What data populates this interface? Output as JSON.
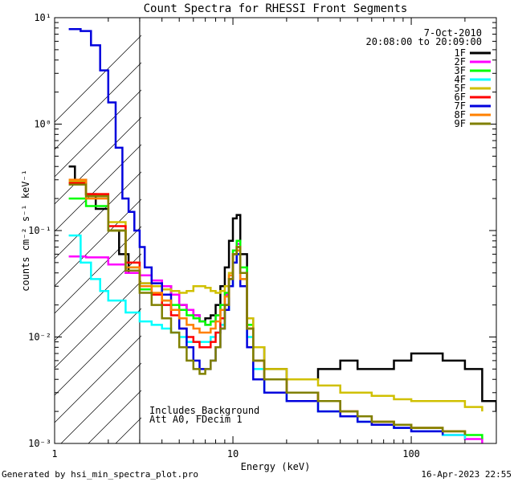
{
  "chart_data": {
    "type": "line",
    "title": "Count Spectra for RHESSI Front Segments",
    "xlabel": "Energy (keV)",
    "ylabel": "counts cm⁻² s⁻¹ keV⁻¹",
    "xscale": "log",
    "yscale": "log",
    "xlim": [
      1,
      300
    ],
    "ylim": [
      0.001,
      10
    ],
    "x_ticks": [
      1,
      10,
      100
    ],
    "x_tick_labels": [
      "1",
      "10",
      "100"
    ],
    "y_ticks": [
      0.001,
      0.01,
      0.1,
      1,
      10
    ],
    "y_tick_labels": [
      "10⁻³",
      "10⁻²",
      "10⁻¹",
      "10⁰",
      "10¹"
    ],
    "date": "7-Oct-2010",
    "time_range": "20:08:00 to 20:09:00",
    "annotations": [
      "Includes_Background",
      "Att A0, FDecim 1"
    ],
    "excluded_region_keV": [
      1,
      3
    ],
    "series": [
      {
        "name": "1F",
        "color": "#000000",
        "x": [
          1.2,
          1.3,
          1.5,
          1.7,
          2.0,
          2.3,
          2.6,
          3.0,
          3.5,
          4.0,
          4.5,
          5.0,
          5.5,
          6.0,
          6.5,
          7.0,
          7.5,
          8.0,
          8.5,
          9.0,
          9.5,
          10.0,
          10.5,
          11.0,
          12.0,
          13.0,
          15.0,
          20.0,
          30.0,
          40.0,
          50.0,
          60.0,
          80.0,
          100.0,
          120.0,
          150.0,
          200.0,
          250.0,
          300.0
        ],
        "y": [
          0.4,
          0.3,
          0.22,
          0.16,
          0.1,
          0.06,
          0.04,
          0.032,
          0.03,
          0.03,
          0.025,
          0.02,
          0.018,
          0.016,
          0.014,
          0.015,
          0.016,
          0.02,
          0.03,
          0.045,
          0.08,
          0.13,
          0.14,
          0.06,
          0.015,
          0.008,
          0.005,
          0.004,
          0.005,
          0.006,
          0.005,
          0.005,
          0.006,
          0.007,
          0.007,
          0.006,
          0.005,
          0.0025,
          0.002
        ]
      },
      {
        "name": "2F",
        "color": "#ff00ff",
        "x": [
          1.2,
          1.5,
          2.0,
          2.5,
          3.0,
          3.5,
          4.0,
          4.5,
          5.0,
          5.5,
          6.0,
          6.5,
          7.0,
          7.5,
          8.0,
          8.5,
          9.0,
          9.5,
          10.0,
          10.5,
          11.0,
          12.0,
          13.0,
          15.0,
          20.0,
          30.0,
          40.0,
          50.0,
          60.0,
          80.0,
          100.0,
          150.0,
          200.0,
          250.0
        ],
        "y": [
          0.057,
          0.056,
          0.048,
          0.04,
          0.038,
          0.034,
          0.03,
          0.025,
          0.02,
          0.018,
          0.016,
          0.014,
          0.013,
          0.014,
          0.016,
          0.02,
          0.025,
          0.035,
          0.06,
          0.075,
          0.04,
          0.012,
          0.006,
          0.004,
          0.003,
          0.0025,
          0.002,
          0.0018,
          0.0015,
          0.0014,
          0.0013,
          0.0012,
          0.0011,
          0.001
        ]
      },
      {
        "name": "3F",
        "color": "#00ff00",
        "x": [
          1.2,
          1.5,
          2.0,
          2.5,
          3.0,
          3.5,
          4.0,
          4.5,
          5.0,
          5.5,
          6.0,
          6.5,
          7.0,
          7.5,
          8.0,
          8.5,
          9.0,
          9.5,
          10.0,
          10.5,
          11.0,
          12.0,
          13.0,
          15.0,
          20.0,
          30.0,
          40.0,
          50.0,
          60.0,
          80.0,
          100.0,
          150.0,
          200.0,
          250.0
        ],
        "y": [
          0.2,
          0.17,
          0.1,
          0.045,
          0.028,
          0.025,
          0.022,
          0.02,
          0.018,
          0.016,
          0.015,
          0.014,
          0.013,
          0.014,
          0.016,
          0.02,
          0.026,
          0.04,
          0.065,
          0.08,
          0.045,
          0.013,
          0.006,
          0.004,
          0.003,
          0.0025,
          0.002,
          0.0018,
          0.0016,
          0.0015,
          0.0014,
          0.0013,
          0.0012,
          0.0011
        ]
      },
      {
        "name": "4F",
        "color": "#00ffff",
        "x": [
          1.2,
          1.4,
          1.6,
          1.8,
          2.0,
          2.5,
          3.0,
          3.5,
          4.0,
          4.5,
          5.0,
          5.5,
          6.0,
          6.5,
          7.0,
          7.5,
          8.0,
          8.5,
          9.0,
          9.5,
          10.0,
          10.5,
          11.0,
          12.0,
          13.0,
          15.0,
          20.0,
          30.0,
          40.0,
          50.0,
          60.0,
          80.0,
          100.0,
          150.0,
          200.0
        ],
        "y": [
          0.09,
          0.05,
          0.035,
          0.027,
          0.022,
          0.017,
          0.014,
          0.013,
          0.012,
          0.011,
          0.01,
          0.009,
          0.009,
          0.009,
          0.009,
          0.01,
          0.011,
          0.013,
          0.018,
          0.03,
          0.05,
          0.06,
          0.035,
          0.01,
          0.005,
          0.003,
          0.0025,
          0.002,
          0.0018,
          0.0016,
          0.0015,
          0.0014,
          0.0013,
          0.0012,
          0.0011
        ]
      },
      {
        "name": "5F",
        "color": "#d0c000",
        "x": [
          1.2,
          1.5,
          2.0,
          2.5,
          3.0,
          3.5,
          4.0,
          4.5,
          5.0,
          5.5,
          6.0,
          6.5,
          7.0,
          7.5,
          8.0,
          8.5,
          9.0,
          9.5,
          10.0,
          10.5,
          11.0,
          12.0,
          13.0,
          15.0,
          20.0,
          30.0,
          40.0,
          50.0,
          60.0,
          80.0,
          100.0,
          150.0,
          200.0,
          250.0
        ],
        "y": [
          0.29,
          0.22,
          0.12,
          0.05,
          0.032,
          0.03,
          0.028,
          0.027,
          0.026,
          0.027,
          0.03,
          0.03,
          0.029,
          0.027,
          0.026,
          0.027,
          0.03,
          0.04,
          0.06,
          0.07,
          0.04,
          0.015,
          0.008,
          0.005,
          0.004,
          0.0035,
          0.003,
          0.003,
          0.0028,
          0.0026,
          0.0025,
          0.0025,
          0.0022,
          0.002
        ]
      },
      {
        "name": "6F",
        "color": "#ff0000",
        "x": [
          1.2,
          1.5,
          2.0,
          2.5,
          3.0,
          3.5,
          4.0,
          4.5,
          5.0,
          5.5,
          6.0,
          6.5,
          7.0,
          7.5,
          8.0,
          8.5,
          9.0,
          9.5,
          10.0,
          10.5,
          11.0,
          12.0,
          13.0,
          15.0,
          20.0,
          30.0,
          40.0,
          50.0,
          60.0,
          80.0,
          100.0,
          150.0,
          200.0
        ],
        "y": [
          0.28,
          0.22,
          0.11,
          0.05,
          0.03,
          0.025,
          0.02,
          0.016,
          0.012,
          0.01,
          0.009,
          0.008,
          0.008,
          0.009,
          0.011,
          0.015,
          0.02,
          0.035,
          0.06,
          0.07,
          0.04,
          0.012,
          0.006,
          0.004,
          0.003,
          0.0025,
          0.002,
          0.0018,
          0.0016,
          0.0015,
          0.0014,
          0.0013,
          0.0012
        ]
      },
      {
        "name": "7F",
        "color": "#0000dd",
        "x": [
          1.2,
          1.4,
          1.6,
          1.8,
          2.0,
          2.2,
          2.4,
          2.6,
          2.8,
          3.0,
          3.2,
          3.5,
          4.0,
          4.5,
          5.0,
          5.5,
          6.0,
          6.5,
          7.0,
          7.5,
          8.0,
          8.5,
          9.0,
          9.5,
          10.0,
          10.5,
          11.0,
          12.0,
          13.0,
          15.0,
          20.0,
          30.0,
          40.0,
          50.0,
          60.0,
          80.0,
          100.0,
          150.0
        ],
        "y": [
          7.8,
          7.5,
          5.5,
          3.2,
          1.6,
          0.6,
          0.2,
          0.15,
          0.1,
          0.07,
          0.045,
          0.032,
          0.025,
          0.018,
          0.012,
          0.008,
          0.006,
          0.005,
          0.005,
          0.006,
          0.008,
          0.012,
          0.018,
          0.03,
          0.05,
          0.06,
          0.03,
          0.008,
          0.004,
          0.003,
          0.0025,
          0.002,
          0.0018,
          0.0016,
          0.0015,
          0.0014,
          0.0013,
          0.0012
        ]
      },
      {
        "name": "8F",
        "color": "#ff8000",
        "x": [
          1.2,
          1.5,
          2.0,
          2.5,
          3.0,
          3.5,
          4.0,
          4.5,
          5.0,
          5.5,
          6.0,
          6.5,
          7.0,
          7.5,
          8.0,
          8.5,
          9.0,
          9.5,
          10.0,
          10.5,
          11.0,
          12.0,
          13.0,
          15.0,
          20.0,
          30.0,
          40.0,
          50.0,
          60.0,
          80.0,
          100.0,
          150.0,
          200.0
        ],
        "y": [
          0.3,
          0.2,
          0.1,
          0.045,
          0.03,
          0.026,
          0.022,
          0.018,
          0.015,
          0.013,
          0.012,
          0.011,
          0.011,
          0.012,
          0.014,
          0.018,
          0.024,
          0.038,
          0.06,
          0.065,
          0.035,
          0.012,
          0.006,
          0.004,
          0.003,
          0.0025,
          0.002,
          0.0018,
          0.0016,
          0.0015,
          0.0014,
          0.0013,
          0.0012
        ]
      },
      {
        "name": "9F",
        "color": "#808000",
        "x": [
          1.2,
          1.5,
          2.0,
          2.5,
          3.0,
          3.5,
          4.0,
          4.5,
          5.0,
          5.5,
          6.0,
          6.5,
          7.0,
          7.5,
          8.0,
          8.5,
          9.0,
          9.5,
          10.0,
          10.5,
          11.0,
          12.0,
          13.0,
          15.0,
          20.0,
          30.0,
          40.0,
          50.0,
          60.0,
          80.0,
          100.0,
          150.0,
          200.0
        ],
        "y": [
          0.27,
          0.21,
          0.1,
          0.042,
          0.026,
          0.02,
          0.015,
          0.011,
          0.008,
          0.006,
          0.005,
          0.0045,
          0.005,
          0.006,
          0.008,
          0.012,
          0.02,
          0.035,
          0.06,
          0.07,
          0.04,
          0.012,
          0.006,
          0.004,
          0.003,
          0.0025,
          0.002,
          0.0018,
          0.0016,
          0.0015,
          0.0014,
          0.0013,
          0.0012
        ]
      }
    ]
  },
  "footer": {
    "generated_by": "Generated by hsi_min_spectra_plot.pro",
    "timestamp": "16-Apr-2023 22:55"
  }
}
